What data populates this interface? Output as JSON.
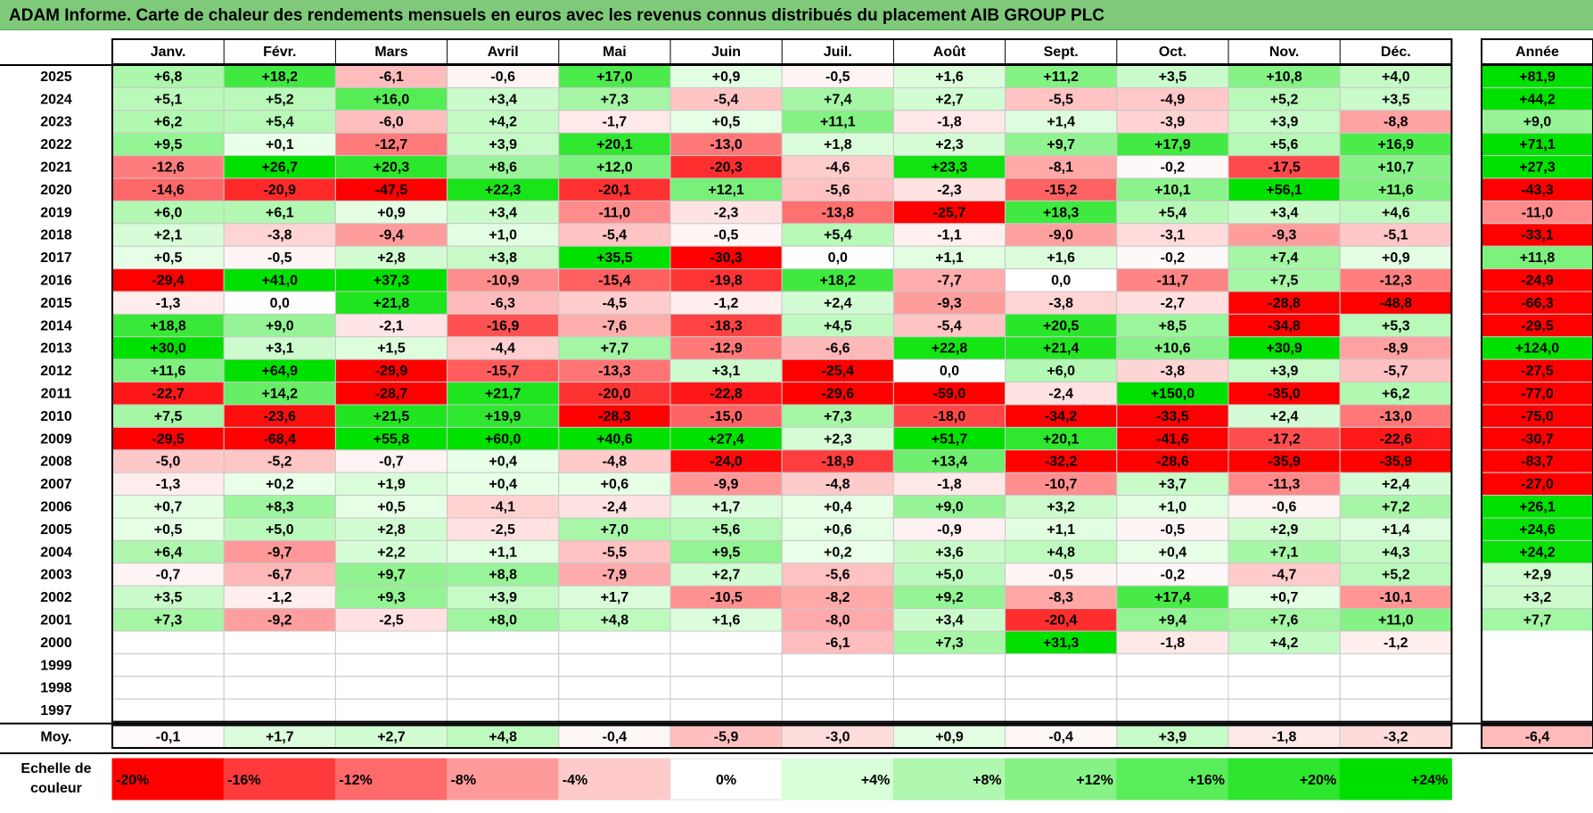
{
  "title": "ADAM Informe. Carte de chaleur des rendements mensuels en euros avec les revenus connus distribués du placement AIB GROUP PLC",
  "chart_data": {
    "type": "heatmap",
    "months": [
      "Janv.",
      "Févr.",
      "Mars",
      "Avril",
      "Mai",
      "Juin",
      "Juil.",
      "Août",
      "Sept.",
      "Oct.",
      "Nov.",
      "Déc."
    ],
    "annual_header": "Année",
    "average_label": "Moy.",
    "rows": [
      {
        "year": "2025",
        "values": [
          "+6,8",
          "+18,2",
          "-6,1",
          "-0,6",
          "+17,0",
          "+0,9",
          "-0,5",
          "+1,6",
          "+11,2",
          "+3,5",
          "+10,8",
          "+4,0"
        ],
        "annual": "+81,9"
      },
      {
        "year": "2024",
        "values": [
          "+5,1",
          "+5,2",
          "+16,0",
          "+3,4",
          "+7,3",
          "-5,4",
          "+7,4",
          "+2,7",
          "-5,5",
          "-4,9",
          "+5,2",
          "+3,5"
        ],
        "annual": "+44,2"
      },
      {
        "year": "2023",
        "values": [
          "+6,2",
          "+5,4",
          "-6,0",
          "+4,2",
          "-1,7",
          "+0,5",
          "+11,1",
          "-1,8",
          "+1,4",
          "-3,9",
          "+3,9",
          "-8,8"
        ],
        "annual": "+9,0"
      },
      {
        "year": "2022",
        "values": [
          "+9,5",
          "+0,1",
          "-12,7",
          "+3,9",
          "+20,1",
          "-13,0",
          "+1,8",
          "+2,3",
          "+9,7",
          "+17,9",
          "+5,6",
          "+16,9"
        ],
        "annual": "+71,1"
      },
      {
        "year": "2021",
        "values": [
          "-12,6",
          "+26,7",
          "+20,3",
          "+8,6",
          "+12,0",
          "-20,3",
          "-4,6",
          "+23,3",
          "-8,1",
          "-0,2",
          "-17,5",
          "+10,7"
        ],
        "annual": "+27,3"
      },
      {
        "year": "2020",
        "values": [
          "-14,6",
          "-20,9",
          "-47,5",
          "+22,3",
          "-20,1",
          "+12,1",
          "-5,6",
          "-2,3",
          "-15,2",
          "+10,1",
          "+56,1",
          "+11,6"
        ],
        "annual": "-43,3"
      },
      {
        "year": "2019",
        "values": [
          "+6,0",
          "+6,1",
          "+0,9",
          "+3,4",
          "-11,0",
          "-2,3",
          "-13,8",
          "-25,7",
          "+18,3",
          "+5,4",
          "+3,4",
          "+4,6"
        ],
        "annual": "-11,0"
      },
      {
        "year": "2018",
        "values": [
          "+2,1",
          "-3,8",
          "-9,4",
          "+1,0",
          "-5,4",
          "-0,5",
          "+5,4",
          "-1,1",
          "-9,0",
          "-3,1",
          "-9,3",
          "-5,1"
        ],
        "annual": "-33,1"
      },
      {
        "year": "2017",
        "values": [
          "+0,5",
          "-0,5",
          "+2,8",
          "+3,8",
          "+35,5",
          "-30,3",
          "0,0",
          "+1,1",
          "+1,6",
          "-0,2",
          "+7,4",
          "+0,9"
        ],
        "annual": "+11,8"
      },
      {
        "year": "2016",
        "values": [
          "-29,4",
          "+41,0",
          "+37,3",
          "-10,9",
          "-15,4",
          "-19,8",
          "+18,2",
          "-7,7",
          "0,0",
          "-11,7",
          "+7,5",
          "-12,3"
        ],
        "annual": "-24,9"
      },
      {
        "year": "2015",
        "values": [
          "-1,3",
          "0,0",
          "+21,8",
          "-6,3",
          "-4,5",
          "-1,2",
          "+2,4",
          "-9,3",
          "-3,8",
          "-2,7",
          "-28,8",
          "-48,8"
        ],
        "annual": "-66,3"
      },
      {
        "year": "2014",
        "values": [
          "+18,8",
          "+9,0",
          "-2,1",
          "-16,9",
          "-7,6",
          "-18,3",
          "+4,5",
          "-5,4",
          "+20,5",
          "+8,5",
          "-34,8",
          "+5,3"
        ],
        "annual": "-29,5"
      },
      {
        "year": "2013",
        "values": [
          "+30,0",
          "+3,1",
          "+1,5",
          "-4,4",
          "+7,7",
          "-12,9",
          "-6,6",
          "+22,8",
          "+21,4",
          "+10,6",
          "+30,9",
          "-8,9"
        ],
        "annual": "+124,0"
      },
      {
        "year": "2012",
        "values": [
          "+11,6",
          "+64,9",
          "-29,9",
          "-15,7",
          "-13,3",
          "+3,1",
          "-25,4",
          "0,0",
          "+6,0",
          "-3,8",
          "+3,9",
          "-5,7"
        ],
        "annual": "-27,5"
      },
      {
        "year": "2011",
        "values": [
          "-22,7",
          "+14,2",
          "-28,7",
          "+21,7",
          "-20,0",
          "-22,8",
          "-29,6",
          "-59,0",
          "-2,4",
          "+150,0",
          "-35,0",
          "+6,2"
        ],
        "annual": "-77,0"
      },
      {
        "year": "2010",
        "values": [
          "+7,5",
          "-23,6",
          "+21,5",
          "+19,9",
          "-28,3",
          "-15,0",
          "+7,3",
          "-18,0",
          "-34,2",
          "-33,5",
          "+2,4",
          "-13,0"
        ],
        "annual": "-75,0"
      },
      {
        "year": "2009",
        "values": [
          "-29,5",
          "-68,4",
          "+55,8",
          "+60,0",
          "+40,6",
          "+27,4",
          "+2,3",
          "+51,7",
          "+20,1",
          "-41,6",
          "-17,2",
          "-22,6"
        ],
        "annual": "-30,7"
      },
      {
        "year": "2008",
        "values": [
          "-5,0",
          "-5,2",
          "-0,7",
          "+0,4",
          "-4,8",
          "-24,0",
          "-18,9",
          "+13,4",
          "-32,2",
          "-28,6",
          "-35,9",
          "-35,9"
        ],
        "annual": "-83,7"
      },
      {
        "year": "2007",
        "values": [
          "-1,3",
          "+0,2",
          "+1,9",
          "+0,4",
          "+0,6",
          "-9,9",
          "-4,8",
          "-1,8",
          "-10,7",
          "+3,7",
          "-11,3",
          "+2,4"
        ],
        "annual": "-27,0"
      },
      {
        "year": "2006",
        "values": [
          "+0,7",
          "+8,3",
          "+0,5",
          "-4,1",
          "-2,4",
          "+1,7",
          "+0,4",
          "+9,0",
          "+3,2",
          "+1,0",
          "-0,6",
          "+7,2"
        ],
        "annual": "+26,1"
      },
      {
        "year": "2005",
        "values": [
          "+0,5",
          "+5,0",
          "+2,8",
          "-2,5",
          "+7,0",
          "+5,6",
          "+0,6",
          "-0,9",
          "+1,1",
          "-0,5",
          "+2,9",
          "+1,4"
        ],
        "annual": "+24,6"
      },
      {
        "year": "2004",
        "values": [
          "+6,4",
          "-9,7",
          "+2,2",
          "+1,1",
          "-5,5",
          "+9,5",
          "+0,2",
          "+3,6",
          "+4,8",
          "+0,4",
          "+7,1",
          "+4,3"
        ],
        "annual": "+24,2"
      },
      {
        "year": "2003",
        "values": [
          "-0,7",
          "-6,7",
          "+9,7",
          "+8,8",
          "-7,9",
          "+2,7",
          "-5,6",
          "+5,0",
          "-0,5",
          "-0,2",
          "-4,7",
          "+5,2"
        ],
        "annual": "+2,9"
      },
      {
        "year": "2002",
        "values": [
          "+3,5",
          "-1,2",
          "+9,3",
          "+3,9",
          "+1,7",
          "-10,5",
          "-8,2",
          "+9,2",
          "-8,3",
          "+17,4",
          "+0,7",
          "-10,1"
        ],
        "annual": "+3,2"
      },
      {
        "year": "2001",
        "values": [
          "+7,3",
          "-9,2",
          "-2,5",
          "+8,0",
          "+4,8",
          "+1,6",
          "-8,0",
          "+3,4",
          "-20,4",
          "+9,4",
          "+7,6",
          "+11,0"
        ],
        "annual": "+7,7"
      },
      {
        "year": "2000",
        "values": [
          "",
          "",
          "",
          "",
          "",
          "",
          "-6,1",
          "+7,3",
          "+31,3",
          "-1,8",
          "+4,2",
          "-1,2"
        ],
        "annual": ""
      },
      {
        "year": "1999",
        "values": [
          "",
          "",
          "",
          "",
          "",
          "",
          "",
          "",
          "",
          "",
          "",
          ""
        ],
        "annual": ""
      },
      {
        "year": "1998",
        "values": [
          "",
          "",
          "",
          "",
          "",
          "",
          "",
          "",
          "",
          "",
          "",
          ""
        ],
        "annual": ""
      },
      {
        "year": "1997",
        "values": [
          "",
          "",
          "",
          "",
          "",
          "",
          "",
          "",
          "",
          "",
          "",
          ""
        ],
        "annual": ""
      }
    ],
    "average": {
      "values": [
        "-0,1",
        "+1,7",
        "+2,7",
        "+4,8",
        "-0,4",
        "-5,9",
        "-3,0",
        "+0,9",
        "-0,4",
        "+3,9",
        "-1,8",
        "-3,2"
      ],
      "annual": "-6,4"
    },
    "scale_label": "Echelle de couleur",
    "scale": [
      {
        "label": "-20%",
        "color": "#ff0000",
        "align": "left"
      },
      {
        "label": "-16%",
        "color": "#ff3a3a",
        "align": "left"
      },
      {
        "label": "-12%",
        "color": "#ff6a6a",
        "align": "left"
      },
      {
        "label": "-8%",
        "color": "#ff9a9a",
        "align": "left"
      },
      {
        "label": "-4%",
        "color": "#ffcaca",
        "align": "left"
      },
      {
        "label": "0%",
        "color": "#ffffff",
        "align": "center"
      },
      {
        "label": "+4%",
        "color": "#d8ffd8",
        "align": "right"
      },
      {
        "label": "+8%",
        "color": "#b0f7b0",
        "align": "right"
      },
      {
        "label": "+12%",
        "color": "#86f286",
        "align": "right"
      },
      {
        "label": "+16%",
        "color": "#5aed5a",
        "align": "right"
      },
      {
        "label": "+20%",
        "color": "#2ee62e",
        "align": "right"
      },
      {
        "label": "+24%",
        "color": "#00e000",
        "align": "right"
      }
    ]
  }
}
